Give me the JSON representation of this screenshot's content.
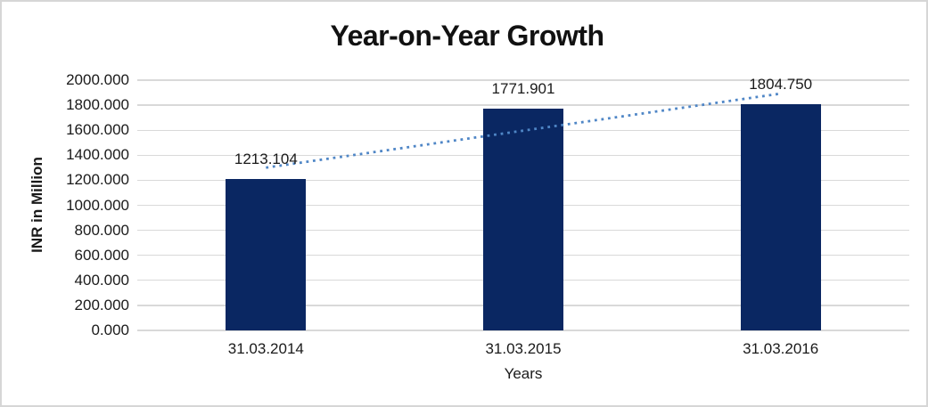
{
  "chart_data": {
    "type": "bar",
    "title": "Year-on-Year Growth",
    "categories": [
      "31.03.2014",
      "31.03.2015",
      "31.03.2016"
    ],
    "values": [
      1213.104,
      1771.901,
      1804.75
    ],
    "data_labels": [
      "1213.104",
      "1771.901",
      "1804.750"
    ],
    "xlabel": "Years",
    "ylabel": "INR in Million",
    "ylim": [
      0,
      2000
    ],
    "ytick_step": 200,
    "ytick_labels": [
      "0.000",
      "200.000",
      "400.000",
      "600.000",
      "800.000",
      "1000.000",
      "1200.000",
      "1400.000",
      "1600.000",
      "1800.000",
      "2000.000"
    ],
    "grid": true,
    "legend": "none",
    "trendline": {
      "type": "linear",
      "style": "dotted"
    },
    "colors": {
      "bar": "#0A2762",
      "trendline": "#4F86C6",
      "gridline": "#D9D9D9",
      "axis_text": "#1A1A1A",
      "frame_border": "#D6D6D6",
      "background": "#FFFFFF"
    }
  }
}
